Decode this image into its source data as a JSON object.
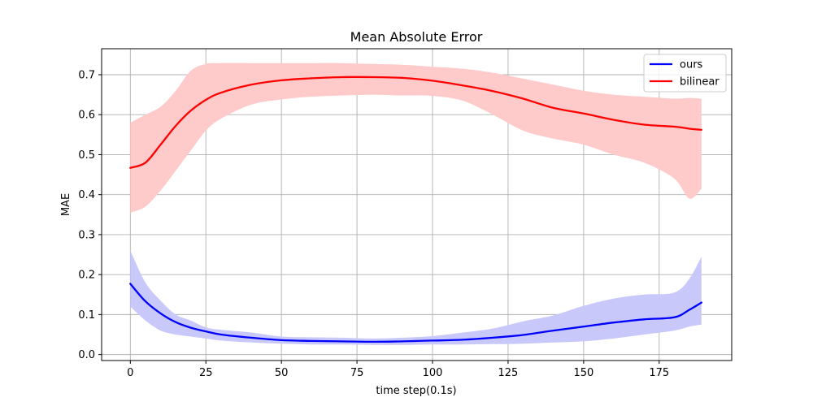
{
  "chart_data": {
    "type": "line",
    "title": "Mean Absolute Error",
    "xlabel": "time step(0.1s)",
    "ylabel": "MAE",
    "xlim": [
      -9.5,
      199
    ],
    "ylim": [
      -0.015,
      0.765
    ],
    "xticks": [
      0,
      25,
      50,
      75,
      100,
      125,
      150,
      175
    ],
    "yticks": [
      0.0,
      0.1,
      0.2,
      0.3,
      0.4,
      0.5,
      0.6,
      0.7
    ],
    "ytick_labels": [
      "0.0",
      "0.1",
      "0.2",
      "0.3",
      "0.4",
      "0.5",
      "0.6",
      "0.7"
    ],
    "grid": true,
    "legend_position": "top-right",
    "series": [
      {
        "name": "ours",
        "color": "#0000ff",
        "band_color": "#c8c8fb",
        "x": [
          0,
          5,
          10,
          15,
          20,
          25,
          30,
          40,
          50,
          60,
          70,
          80,
          90,
          100,
          110,
          120,
          130,
          140,
          150,
          160,
          170,
          180,
          185,
          189
        ],
        "mean": [
          0.177,
          0.133,
          0.103,
          0.081,
          0.067,
          0.058,
          0.05,
          0.042,
          0.036,
          0.034,
          0.033,
          0.032,
          0.033,
          0.035,
          0.037,
          0.042,
          0.049,
          0.06,
          0.07,
          0.08,
          0.088,
          0.093,
          0.112,
          0.13
        ],
        "upper": [
          0.26,
          0.18,
          0.135,
          0.1,
          0.085,
          0.068,
          0.062,
          0.055,
          0.045,
          0.043,
          0.042,
          0.04,
          0.042,
          0.046,
          0.055,
          0.065,
          0.083,
          0.098,
          0.122,
          0.14,
          0.15,
          0.155,
          0.19,
          0.245
        ],
        "lower": [
          0.12,
          0.085,
          0.06,
          0.05,
          0.045,
          0.04,
          0.035,
          0.03,
          0.027,
          0.025,
          0.025,
          0.024,
          0.024,
          0.025,
          0.025,
          0.026,
          0.027,
          0.03,
          0.033,
          0.04,
          0.05,
          0.06,
          0.07,
          0.075
        ]
      },
      {
        "name": "bilinear",
        "color": "#ff0000",
        "band_color": "#ffcaca",
        "x": [
          0,
          5,
          10,
          15,
          20,
          25,
          30,
          40,
          50,
          60,
          70,
          80,
          90,
          100,
          110,
          120,
          130,
          140,
          150,
          160,
          170,
          180,
          185,
          189
        ],
        "mean": [
          0.467,
          0.48,
          0.525,
          0.572,
          0.61,
          0.637,
          0.655,
          0.675,
          0.686,
          0.691,
          0.694,
          0.694,
          0.692,
          0.685,
          0.673,
          0.659,
          0.64,
          0.617,
          0.603,
          0.587,
          0.575,
          0.57,
          0.565,
          0.562
        ],
        "upper": [
          0.58,
          0.6,
          0.62,
          0.66,
          0.71,
          0.727,
          0.729,
          0.729,
          0.729,
          0.729,
          0.729,
          0.727,
          0.725,
          0.72,
          0.715,
          0.705,
          0.69,
          0.675,
          0.66,
          0.65,
          0.645,
          0.64,
          0.642,
          0.64
        ],
        "lower": [
          0.355,
          0.37,
          0.41,
          0.46,
          0.51,
          0.56,
          0.59,
          0.625,
          0.638,
          0.645,
          0.648,
          0.65,
          0.648,
          0.647,
          0.635,
          0.6,
          0.56,
          0.54,
          0.525,
          0.5,
          0.48,
          0.44,
          0.39,
          0.415
        ]
      }
    ]
  }
}
